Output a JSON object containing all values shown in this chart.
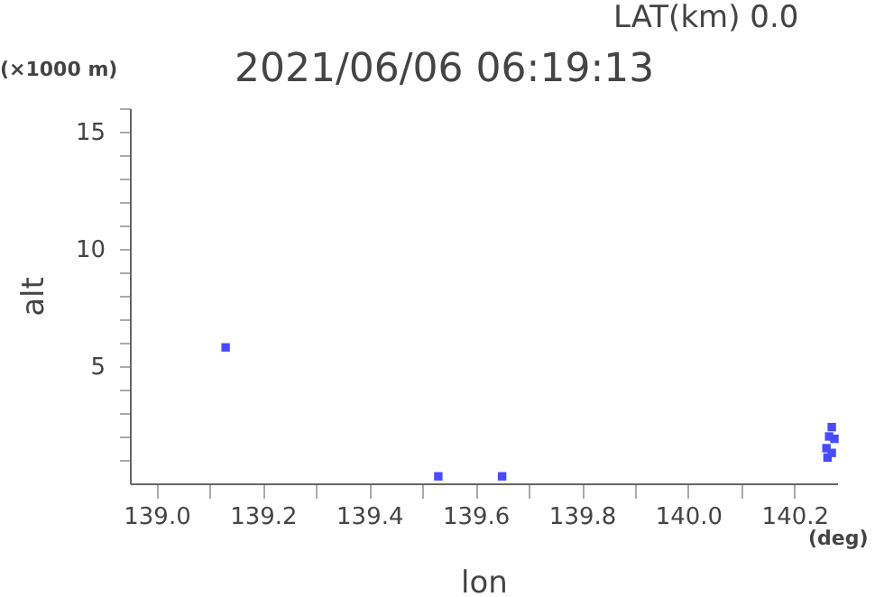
{
  "chart_data": {
    "type": "scatter",
    "title": "2021/06/06 06:19:13",
    "subtitle": "LAT(km) 0.0",
    "xlabel": "lon",
    "ylabel": "alt",
    "annotations": [
      "(×1000 m)",
      "(deg)"
    ],
    "xlim": [
      138.95,
      140.28
    ],
    "xticks": [
      {
        "value": 139.0,
        "label": "139.0"
      },
      {
        "value": 139.1,
        "label": null
      },
      {
        "value": 139.2,
        "label": "139.2"
      },
      {
        "value": 139.3,
        "label": null
      },
      {
        "value": 139.4,
        "label": "139.4"
      },
      {
        "value": 139.5,
        "label": null
      },
      {
        "value": 139.6,
        "label": "139.6"
      },
      {
        "value": 139.7,
        "label": null
      },
      {
        "value": 139.8,
        "label": "139.8"
      },
      {
        "value": 139.9,
        "label": null
      },
      {
        "value": 140.0,
        "label": "140.0"
      },
      {
        "value": 140.1,
        "label": null
      },
      {
        "value": 140.2,
        "label": "140.2"
      }
    ],
    "ylim": [
      0,
      16
    ],
    "yticks": [
      {
        "value": 1,
        "label": null
      },
      {
        "value": 2,
        "label": null
      },
      {
        "value": 3,
        "label": null
      },
      {
        "value": 4,
        "label": null
      },
      5,
      {
        "value": 6,
        "label": null
      },
      {
        "value": 7,
        "label": null
      },
      {
        "value": 8,
        "label": null
      },
      {
        "value": 9,
        "label": null
      },
      10,
      {
        "value": 11,
        "label": null
      },
      {
        "value": 12,
        "label": null
      },
      {
        "value": 13,
        "label": null
      },
      {
        "value": 14,
        "label": null
      },
      15,
      {
        "value": 16,
        "label": null
      }
    ],
    "grid": false,
    "marker": "square",
    "series": [
      {
        "color": "#4a4aff",
        "x": [
          139.13,
          139.53,
          139.65,
          140.26,
          140.265,
          140.27,
          140.275,
          140.27,
          140.262
        ],
        "values": [
          5.8,
          0.3,
          0.3,
          1.5,
          2.0,
          2.4,
          1.9,
          1.3,
          1.1
        ]
      }
    ]
  }
}
